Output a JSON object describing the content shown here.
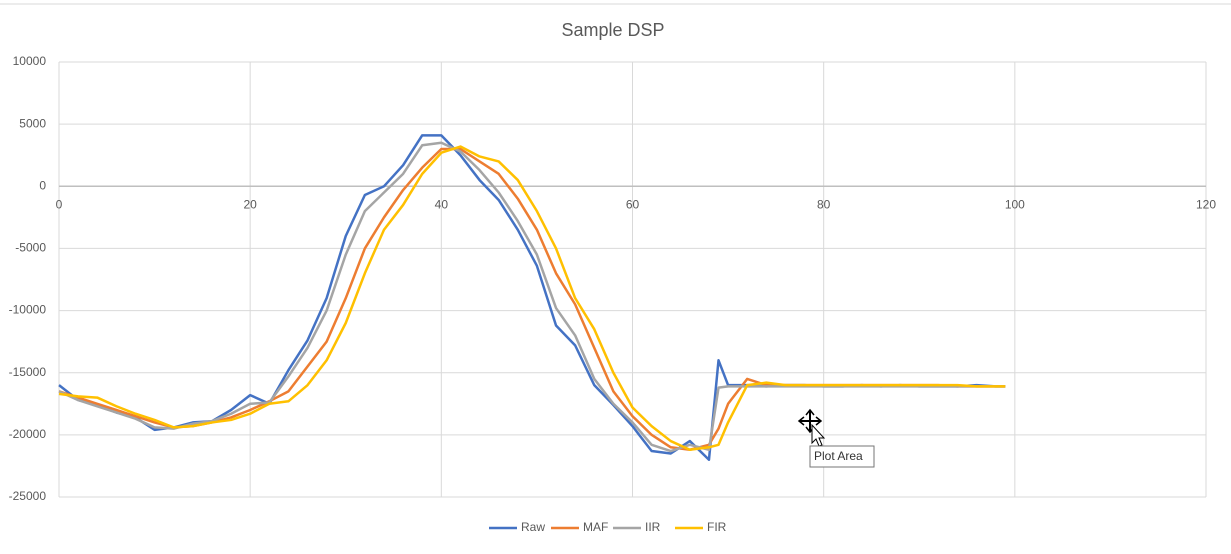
{
  "chart_data": {
    "type": "line",
    "title": "Sample DSP",
    "x": [
      0,
      2,
      4,
      6,
      8,
      10,
      12,
      14,
      16,
      18,
      20,
      22,
      24,
      26,
      28,
      30,
      32,
      34,
      36,
      38,
      40,
      42,
      44,
      46,
      48,
      50,
      52,
      54,
      56,
      58,
      60,
      62,
      64,
      66,
      68,
      69,
      70,
      72,
      74,
      76,
      78,
      80,
      82,
      84,
      86,
      88,
      90,
      92,
      94,
      96,
      98,
      99
    ],
    "series": [
      {
        "name": "Raw",
        "color": "#4472c4",
        "values": [
          -16000,
          -17200,
          -17600,
          -18200,
          -18600,
          -19600,
          -19400,
          -19000,
          -18900,
          -18000,
          -16800,
          -17500,
          -14800,
          -12400,
          -9000,
          -4000,
          -700,
          0,
          1700,
          4100,
          4100,
          2500,
          500,
          -1100,
          -3500,
          -6400,
          -11200,
          -12800,
          -16000,
          -17600,
          -19300,
          -21300,
          -21500,
          -20500,
          -22000,
          -14000,
          -16000,
          -16000,
          -16100,
          -16000,
          -16000,
          -16100,
          -16100,
          -16000,
          -16100,
          -16000,
          -16100,
          -16100,
          -16100,
          -16000,
          -16100,
          -16100
        ]
      },
      {
        "name": "MAF",
        "color": "#ed7d31",
        "values": [
          -16500,
          -17000,
          -17500,
          -18000,
          -18500,
          -19000,
          -19400,
          -19300,
          -19000,
          -18600,
          -18000,
          -17300,
          -16500,
          -14500,
          -12500,
          -9000,
          -5000,
          -2500,
          -300,
          1500,
          3000,
          3000,
          2000,
          1000,
          -1000,
          -3500,
          -7000,
          -9500,
          -13000,
          -16500,
          -18500,
          -20000,
          -21000,
          -21200,
          -20800,
          -19500,
          -17500,
          -15500,
          -16000,
          -16000,
          -16000,
          -16000,
          -16000,
          -16000,
          -16000,
          -16000,
          -16000,
          -16000,
          -16100,
          -16100,
          -16100,
          -16100
        ]
      },
      {
        "name": "IIR",
        "color": "#a5a5a5",
        "values": [
          -16500,
          -17200,
          -17700,
          -18200,
          -18700,
          -19400,
          -19500,
          -19100,
          -18900,
          -18300,
          -17500,
          -17400,
          -15300,
          -13000,
          -10000,
          -5500,
          -2000,
          -500,
          1000,
          3300,
          3500,
          2800,
          1300,
          -500,
          -2800,
          -5500,
          -9800,
          -12000,
          -15500,
          -17500,
          -19000,
          -20800,
          -21300,
          -20800,
          -21200,
          -16200,
          -16100,
          -16100,
          -16100,
          -16100,
          -16100,
          -16100,
          -16100,
          -16100,
          -16100,
          -16100,
          -16100,
          -16100,
          -16100,
          -16100,
          -16100,
          -16100
        ]
      },
      {
        "name": "FIR",
        "color": "#ffc000",
        "values": [
          -16700,
          -16900,
          -17000,
          -17700,
          -18300,
          -18800,
          -19400,
          -19300,
          -19000,
          -18800,
          -18300,
          -17500,
          -17300,
          -16000,
          -14000,
          -11000,
          -7000,
          -3500,
          -1500,
          1000,
          2700,
          3200,
          2400,
          2000,
          500,
          -2000,
          -5000,
          -9000,
          -11500,
          -15000,
          -17800,
          -19300,
          -20500,
          -21200,
          -21000,
          -20800,
          -19000,
          -16000,
          -15800,
          -16000,
          -16000,
          -16000,
          -16000,
          -16000,
          -16000,
          -16000,
          -16000,
          -16000,
          -16000,
          -16100,
          -16100,
          -16100
        ]
      }
    ],
    "xlim": [
      0,
      120
    ],
    "xticks": [
      0,
      20,
      40,
      60,
      80,
      100,
      120
    ],
    "ylim": [
      -25000,
      10000
    ],
    "yticks": [
      -25000,
      -20000,
      -15000,
      -10000,
      -5000,
      0,
      5000,
      10000
    ],
    "grid": true,
    "legend": "bottom",
    "tooltip": "Plot Area"
  }
}
